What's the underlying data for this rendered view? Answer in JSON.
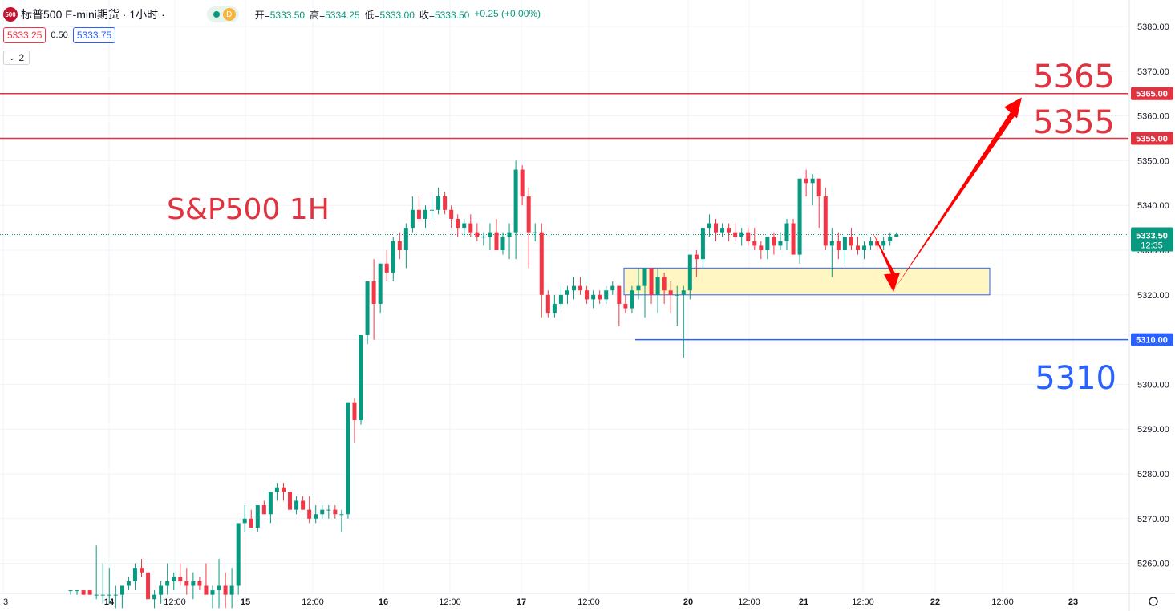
{
  "header": {
    "logo_text": "500",
    "title": "标普500 E-mini期货 · 1小时 ·",
    "session_badge": "D",
    "ohlc": [
      {
        "label": "开=",
        "value": "5333.50"
      },
      {
        "label": "高=",
        "value": "5334.25"
      },
      {
        "label": "低=",
        "value": "5333.00"
      },
      {
        "label": "收=",
        "value": "5333.50"
      }
    ],
    "change": "+0.25 (+0.00%)"
  },
  "quote": {
    "bid": "5333.25",
    "spread": "0.50",
    "ask": "5333.75"
  },
  "indicators": {
    "count": "2"
  },
  "colors": {
    "up": "#089981",
    "down": "#f23645",
    "level_red": "#e0323f",
    "level_blue": "#2962ff",
    "zone_fill": "#fff6c4",
    "zone_stroke": "#2962ff"
  },
  "chart_data": {
    "type": "candlestick",
    "title": "S&P500 1H",
    "ylim": [
      5250,
      5382
    ],
    "y_ticks": [
      5260,
      5270,
      5280,
      5290,
      5300,
      5310,
      5320,
      5330,
      5340,
      5350,
      5360,
      5370,
      5380
    ],
    "y_tick_labels": [
      "5260.00",
      "5270.00",
      "5280.00",
      "5290.00",
      "5300.00",
      "5310.00",
      "5320.00",
      "5330.00",
      "5340.00",
      "5350.00",
      "5360.00",
      "5370.00",
      "5380.00"
    ],
    "x_tick_labels": [
      "3",
      "14",
      "12:00",
      "15",
      "12:00",
      "16",
      "12:00",
      "17",
      "12:00",
      "20",
      "12:00",
      "21",
      "12:00",
      "22",
      "12:00",
      "23"
    ],
    "x_tick_bold": [
      "14",
      "15",
      "16",
      "17",
      "20",
      "21",
      "22",
      "23"
    ],
    "last_price": "5333.50",
    "last_price_value": 5333.5,
    "countdown": "12:35",
    "levels": [
      {
        "value": 5365,
        "price_label": "5365.00",
        "big_label": "5365",
        "color": "red"
      },
      {
        "value": 5355,
        "price_label": "5355.00",
        "big_label": "5355",
        "color": "red"
      },
      {
        "value": 5310,
        "price_label": "5310.00",
        "big_label": "5310",
        "color": "blue"
      }
    ],
    "support_zone": {
      "low": 5320,
      "high": 5326
    },
    "projection": [
      5334,
      5321,
      5362
    ],
    "candles": [
      [
        5254,
        5254,
        5253,
        5254
      ],
      [
        5254,
        5254,
        5253,
        5254
      ],
      [
        5254,
        5254,
        5253,
        5253
      ],
      [
        5254,
        5254,
        5253,
        5253
      ],
      [
        5253,
        5264,
        5252,
        5253
      ],
      [
        5253,
        5260,
        5251,
        5253
      ],
      [
        5253,
        5259,
        5251,
        5253
      ],
      [
        5253,
        5255,
        5250,
        5253
      ],
      [
        5253,
        5255,
        5250,
        5255
      ],
      [
        5255,
        5257,
        5254,
        5256
      ],
      [
        5256,
        5260,
        5254,
        5259
      ],
      [
        5259,
        5261,
        5257,
        5258
      ],
      [
        5258,
        5257,
        5252,
        5252
      ],
      [
        5252,
        5254,
        5250,
        5253
      ],
      [
        5253,
        5256,
        5251,
        5255
      ],
      [
        5255,
        5260,
        5253,
        5256
      ],
      [
        5256,
        5258,
        5254,
        5257
      ],
      [
        5257,
        5260,
        5255,
        5256
      ],
      [
        5256,
        5259,
        5253,
        5255
      ],
      [
        5255,
        5258,
        5252,
        5256
      ],
      [
        5256,
        5257,
        5254,
        5255
      ],
      [
        5255,
        5260,
        5254,
        5253
      ],
      [
        5253,
        5255,
        5250,
        5254
      ],
      [
        5254,
        5261,
        5250,
        5255
      ],
      [
        5255,
        5258,
        5250,
        5253
      ],
      [
        5253,
        5259,
        5250,
        5255
      ],
      [
        5255,
        5268,
        5253,
        5269
      ],
      [
        5269,
        5273,
        5267,
        5270
      ],
      [
        5270,
        5272,
        5268,
        5268
      ],
      [
        5268,
        5273,
        5267,
        5273
      ],
      [
        5273,
        5274,
        5271,
        5271
      ],
      [
        5271,
        5276,
        5269,
        5276
      ],
      [
        5276,
        5278,
        5274,
        5277
      ],
      [
        5277,
        5278,
        5274,
        5276
      ],
      [
        5276,
        5276,
        5272,
        5272
      ],
      [
        5272,
        5275,
        5271,
        5274
      ],
      [
        5274,
        5275,
        5272,
        5272
      ],
      [
        5272,
        5275,
        5269,
        5270
      ],
      [
        5270,
        5273,
        5269,
        5271
      ],
      [
        5271,
        5273,
        5270,
        5272
      ],
      [
        5272,
        5273,
        5270,
        5272
      ],
      [
        5272,
        5273,
        5270,
        5271
      ],
      [
        5271,
        5272,
        5267,
        5271
      ],
      [
        5271,
        5296,
        5270,
        5296
      ],
      [
        5296,
        5297,
        5287,
        5292
      ],
      [
        5292,
        5311,
        5291,
        5311
      ],
      [
        5311,
        5322,
        5309,
        5323
      ],
      [
        5323,
        5328,
        5310,
        5318
      ],
      [
        5318,
        5327,
        5316,
        5327
      ],
      [
        5327,
        5330,
        5323,
        5325
      ],
      [
        5325,
        5333,
        5323,
        5332
      ],
      [
        5332,
        5334,
        5328,
        5330
      ],
      [
        5330,
        5336,
        5326,
        5335
      ],
      [
        5335,
        5342,
        5334,
        5339
      ],
      [
        5339,
        5342,
        5336,
        5337
      ],
      [
        5337,
        5340,
        5335,
        5339
      ],
      [
        5339,
        5342,
        5337,
        5339
      ],
      [
        5339,
        5344,
        5338,
        5342
      ],
      [
        5342,
        5343,
        5338,
        5339
      ],
      [
        5339,
        5340,
        5335,
        5337
      ],
      [
        5337,
        5338,
        5333,
        5335
      ],
      [
        5335,
        5337,
        5333,
        5336
      ],
      [
        5336,
        5338,
        5333,
        5334
      ],
      [
        5334,
        5336,
        5332,
        5333
      ],
      [
        5333,
        5334,
        5331,
        5333
      ],
      [
        5333,
        5336,
        5330,
        5334
      ],
      [
        5334,
        5337,
        5330,
        5330
      ],
      [
        5330,
        5334,
        5329,
        5333
      ],
      [
        5333,
        5336,
        5328,
        5334
      ],
      [
        5334,
        5350,
        5328,
        5348
      ],
      [
        5348,
        5349,
        5340,
        5342
      ],
      [
        5342,
        5344,
        5326,
        5334
      ],
      [
        5334,
        5336,
        5332,
        5334
      ],
      [
        5334,
        5336,
        5315,
        5320
      ],
      [
        5320,
        5321,
        5315,
        5316
      ],
      [
        5316,
        5320,
        5315,
        5318
      ],
      [
        5318,
        5322,
        5317,
        5320
      ],
      [
        5320,
        5322,
        5318,
        5321
      ],
      [
        5321,
        5324,
        5319,
        5322
      ],
      [
        5322,
        5324,
        5320,
        5321
      ],
      [
        5321,
        5322,
        5318,
        5319
      ],
      [
        5319,
        5321,
        5317,
        5320
      ],
      [
        5320,
        5321,
        5318,
        5319
      ],
      [
        5319,
        5322,
        5318,
        5321
      ],
      [
        5321,
        5323,
        5320,
        5322
      ],
      [
        5322,
        5322,
        5313,
        5318
      ],
      [
        5318,
        5320,
        5316,
        5317
      ],
      [
        5317,
        5322,
        5316,
        5321
      ],
      [
        5321,
        5326,
        5319,
        5322
      ],
      [
        5322,
        5326,
        5315,
        5326
      ],
      [
        5326,
        5326,
        5318,
        5320
      ],
      [
        5320,
        5326,
        5316,
        5324
      ],
      [
        5324,
        5325,
        5318,
        5321
      ],
      [
        5321,
        5323,
        5316,
        5320
      ],
      [
        5320,
        5322,
        5313,
        5320
      ],
      [
        5320,
        5322,
        5306,
        5321
      ],
      [
        5321,
        5328,
        5319,
        5329
      ],
      [
        5329,
        5330,
        5324,
        5328
      ],
      [
        5328,
        5334,
        5326,
        5335
      ],
      [
        5335,
        5338,
        5333,
        5336
      ],
      [
        5336,
        5337,
        5332,
        5334
      ],
      [
        5334,
        5336,
        5333,
        5335
      ],
      [
        5335,
        5336,
        5332,
        5334
      ],
      [
        5334,
        5336,
        5332,
        5333
      ],
      [
        5333,
        5335,
        5331,
        5334
      ],
      [
        5334,
        5335,
        5331,
        5332
      ],
      [
        5332,
        5335,
        5330,
        5331
      ],
      [
        5331,
        5332,
        5328,
        5330
      ],
      [
        5330,
        5332,
        5328,
        5333
      ],
      [
        5333,
        5334,
        5329,
        5331
      ],
      [
        5331,
        5334,
        5330,
        5332
      ],
      [
        5332,
        5337,
        5330,
        5336
      ],
      [
        5336,
        5337,
        5329,
        5329
      ],
      [
        5329,
        5346,
        5327,
        5346
      ],
      [
        5346,
        5348,
        5342,
        5345
      ],
      [
        5345,
        5347,
        5340,
        5346
      ],
      [
        5346,
        5346,
        5335,
        5342
      ],
      [
        5342,
        5344,
        5330,
        5331
      ],
      [
        5331,
        5335,
        5324,
        5332
      ],
      [
        5332,
        5334,
        5328,
        5330
      ],
      [
        5330,
        5332,
        5327,
        5333
      ],
      [
        5333,
        5335,
        5330,
        5331
      ],
      [
        5331,
        5333,
        5329,
        5330
      ],
      [
        5330,
        5332,
        5328,
        5331
      ],
      [
        5331,
        5333,
        5330,
        5332
      ],
      [
        5332,
        5333,
        5330,
        5331
      ],
      [
        5331,
        5333,
        5330,
        5332
      ],
      [
        5332,
        5334,
        5331,
        5333
      ],
      [
        5333,
        5334,
        5333,
        5333.5
      ]
    ]
  }
}
